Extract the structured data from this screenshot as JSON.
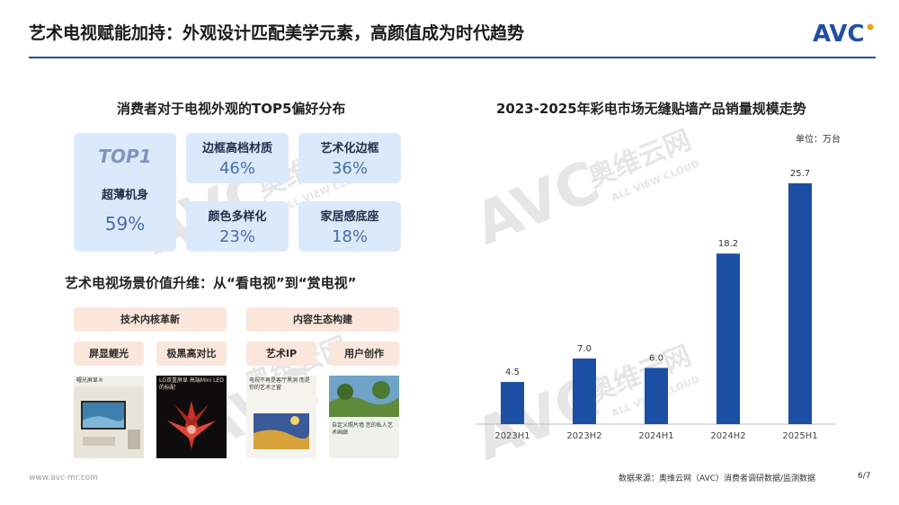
{
  "header": {
    "title": "艺术电视赋能加持：外观设计匹配美学元素，高颜值成为时代趋势",
    "logo_text": "AVC"
  },
  "prefs": {
    "title": "消费者对于电视外观的TOP5偏好分布",
    "top_tag": "TOP1",
    "items": [
      {
        "label": "超薄机身",
        "value": "59%"
      },
      {
        "label": "边框高档材质",
        "value": "46%"
      },
      {
        "label": "艺术化边框",
        "value": "36%"
      },
      {
        "label": "颜色多样化",
        "value": "23%"
      },
      {
        "label": "家居感底座",
        "value": "18%"
      }
    ]
  },
  "scene": {
    "title": "艺术电视场景价值升维：从“看电视”到“赏电视”",
    "pills": {
      "tech": "技术内核革新",
      "content": "内容生态构建",
      "screen": "屏显鲤光",
      "contrast": "极黑高对比",
      "artip": "艺术IP",
      "ugc": "用户创作"
    },
    "thumbs": [
      {
        "caption": "曜光屏显®"
      },
      {
        "caption": "LG双重屏显 高端Mini LED的标配"
      },
      {
        "caption": "电视不再是客厅黑洞 而是你的艺术之窗"
      },
      {
        "caption": "自定义照片墙 您的私人艺术画廊"
      }
    ]
  },
  "chart_data": {
    "type": "bar",
    "title": "2023-2025年彩电市场无缝贴墙产品销量规模走势",
    "unit": "单位：万台",
    "categories": [
      "2023H1",
      "2023H2",
      "2024H1",
      "2024H2",
      "2025H1"
    ],
    "values": [
      4.5,
      7.0,
      6.0,
      18.2,
      25.7
    ],
    "value_labels": [
      "4.5",
      "7.0",
      "6.0",
      "18.2",
      "25.7"
    ],
    "ylim": [
      0,
      28
    ],
    "grid": false,
    "bar_color": "#1b4fa3"
  },
  "watermarks": {
    "brand": "AVC",
    "cn": "奥维云网",
    "en": "ALL VIEW CLOUD"
  },
  "footer": {
    "site": "www.avc-mr.com",
    "source": "数据来源：奥维云网（AVC）消费者调研数据/监测数据",
    "page": "6/7"
  },
  "colors": {
    "accent": "#1f4fa0",
    "card_bg": "#dbeafa",
    "pill_bg": "#fbe6dc"
  }
}
